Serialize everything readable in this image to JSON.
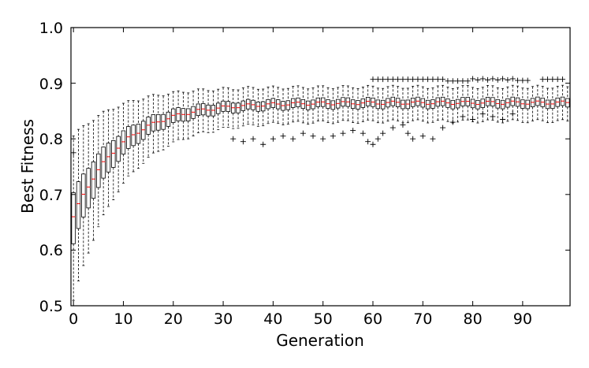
{
  "chart_data": {
    "type": "box",
    "title": "",
    "xlabel": "Generation",
    "ylabel": "Best Fitness",
    "xlim": [
      -0.5,
      99.5
    ],
    "ylim": [
      0.5,
      1.0
    ],
    "xticks": [
      0,
      10,
      20,
      30,
      40,
      50,
      60,
      70,
      80,
      90
    ],
    "yticks": [
      0.5,
      0.6,
      0.7,
      0.8,
      0.9,
      1.0
    ],
    "xtick_labels": [
      "0",
      "10",
      "20",
      "30",
      "40",
      "50",
      "60",
      "70",
      "80",
      "90"
    ],
    "ytick_labels": [
      "0.5",
      "0.6",
      "0.7",
      "0.8",
      "0.9",
      "1.0"
    ],
    "grid": false,
    "legend": "none",
    "colors": {
      "box": "#000000",
      "median": "#ff0000",
      "whisker": "#000000",
      "flier": "#000000"
    },
    "series_summary": {
      "generations": 100,
      "median_start": 0.66,
      "median_end": 0.865,
      "approx_plateau_from_generation": 30
    },
    "outliers": [
      {
        "x": 0,
        "y": 0.775
      },
      {
        "x": 32,
        "y": 0.8
      },
      {
        "x": 34,
        "y": 0.795
      },
      {
        "x": 36,
        "y": 0.8
      },
      {
        "x": 38,
        "y": 0.79
      },
      {
        "x": 40,
        "y": 0.8
      },
      {
        "x": 42,
        "y": 0.805
      },
      {
        "x": 44,
        "y": 0.8
      },
      {
        "x": 46,
        "y": 0.81
      },
      {
        "x": 48,
        "y": 0.805
      },
      {
        "x": 50,
        "y": 0.8
      },
      {
        "x": 52,
        "y": 0.805
      },
      {
        "x": 54,
        "y": 0.81
      },
      {
        "x": 56,
        "y": 0.815
      },
      {
        "x": 58,
        "y": 0.81
      },
      {
        "x": 59,
        "y": 0.795
      },
      {
        "x": 60,
        "y": 0.79
      },
      {
        "x": 61,
        "y": 0.8
      },
      {
        "x": 62,
        "y": 0.81
      },
      {
        "x": 64,
        "y": 0.82
      },
      {
        "x": 66,
        "y": 0.825
      },
      {
        "x": 67,
        "y": 0.81
      },
      {
        "x": 68,
        "y": 0.8
      },
      {
        "x": 70,
        "y": 0.805
      },
      {
        "x": 72,
        "y": 0.8
      },
      {
        "x": 74,
        "y": 0.82
      },
      {
        "x": 76,
        "y": 0.83
      },
      {
        "x": 78,
        "y": 0.84
      },
      {
        "x": 80,
        "y": 0.835
      },
      {
        "x": 82,
        "y": 0.845
      },
      {
        "x": 84,
        "y": 0.84
      },
      {
        "x": 86,
        "y": 0.835
      },
      {
        "x": 88,
        "y": 0.845
      },
      {
        "x": 60,
        "y": 0.907
      },
      {
        "x": 61,
        "y": 0.907
      },
      {
        "x": 62,
        "y": 0.907
      },
      {
        "x": 63,
        "y": 0.907
      },
      {
        "x": 64,
        "y": 0.907
      },
      {
        "x": 65,
        "y": 0.907
      },
      {
        "x": 66,
        "y": 0.907
      },
      {
        "x": 67,
        "y": 0.907
      },
      {
        "x": 68,
        "y": 0.907
      },
      {
        "x": 69,
        "y": 0.907
      },
      {
        "x": 70,
        "y": 0.907
      },
      {
        "x": 71,
        "y": 0.907
      },
      {
        "x": 72,
        "y": 0.907
      },
      {
        "x": 73,
        "y": 0.907
      },
      {
        "x": 74,
        "y": 0.907
      },
      {
        "x": 75,
        "y": 0.904
      },
      {
        "x": 76,
        "y": 0.904
      },
      {
        "x": 77,
        "y": 0.904
      },
      {
        "x": 78,
        "y": 0.904
      },
      {
        "x": 79,
        "y": 0.904
      },
      {
        "x": 80,
        "y": 0.908
      },
      {
        "x": 81,
        "y": 0.906
      },
      {
        "x": 82,
        "y": 0.908
      },
      {
        "x": 83,
        "y": 0.906
      },
      {
        "x": 84,
        "y": 0.908
      },
      {
        "x": 85,
        "y": 0.906
      },
      {
        "x": 86,
        "y": 0.908
      },
      {
        "x": 87,
        "y": 0.906
      },
      {
        "x": 88,
        "y": 0.908
      },
      {
        "x": 89,
        "y": 0.905
      },
      {
        "x": 90,
        "y": 0.905
      },
      {
        "x": 91,
        "y": 0.905
      },
      {
        "x": 94,
        "y": 0.907
      },
      {
        "x": 95,
        "y": 0.907
      },
      {
        "x": 96,
        "y": 0.907
      },
      {
        "x": 97,
        "y": 0.907
      },
      {
        "x": 98,
        "y": 0.907
      }
    ]
  }
}
